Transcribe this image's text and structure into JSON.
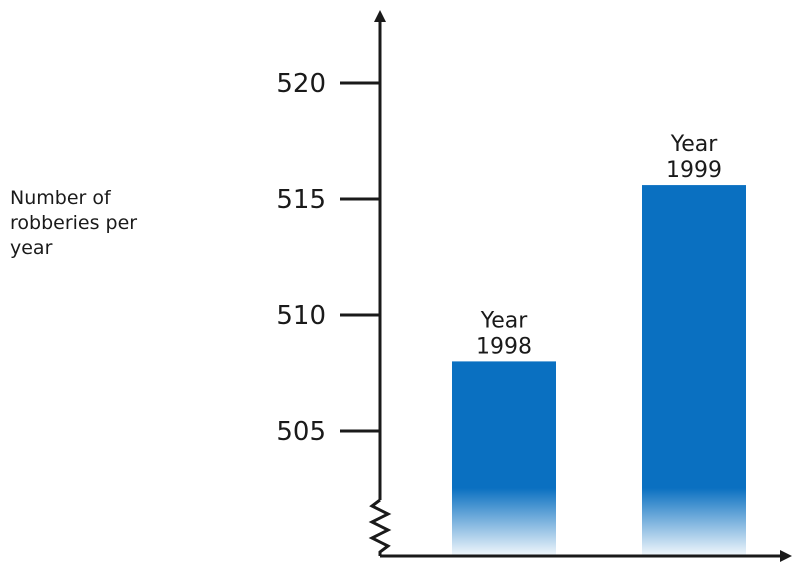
{
  "chart_data": {
    "type": "bar",
    "title": "",
    "xlabel": "",
    "ylabel": [
      "Number of",
      "robberies per",
      "year"
    ],
    "categories": [
      [
        "Year",
        "1998"
      ],
      [
        "Year",
        "1999"
      ]
    ],
    "values": [
      508,
      515.6
    ],
    "yticks": [
      505,
      510,
      515,
      520
    ],
    "ylim": [
      500,
      524
    ],
    "axis_break": true,
    "grid": false,
    "legend": "none",
    "colors": {
      "bar": "#0a70c1",
      "axis": "#1a1a1a"
    }
  }
}
